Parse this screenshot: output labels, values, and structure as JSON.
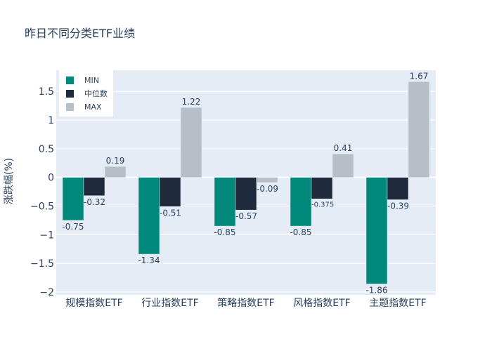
{
  "chart_data": {
    "type": "bar",
    "title": "昨日不同分类ETF业绩",
    "xlabel": "",
    "ylabel": "涨跌幅(%)",
    "categories": [
      "规模指数ETF",
      "行业指数ETF",
      "策略指数ETF",
      "风格指数ETF",
      "主题指数ETF"
    ],
    "series": [
      {
        "name": "MIN",
        "color": "#00897b",
        "values": [
          -0.75,
          -1.34,
          -0.85,
          -0.85,
          -1.86
        ],
        "labels": [
          "-0.75",
          "-1.34",
          "-0.85",
          "-0.85",
          "-1.86"
        ]
      },
      {
        "name": "中位数",
        "color": "#1f2a3c",
        "values": [
          -0.32,
          -0.51,
          -0.57,
          -0.375,
          -0.39
        ],
        "labels": [
          "-0.32",
          "-0.51",
          "-0.57",
          "-0.375",
          "-0.39"
        ]
      },
      {
        "name": "MAX",
        "color": "#b8bec6",
        "values": [
          0.19,
          1.22,
          -0.09,
          0.41,
          1.67
        ],
        "labels": [
          "0.19",
          "1.22",
          "-0.09",
          "0.41",
          "1.67"
        ]
      }
    ],
    "yticks": [
      1.5,
      1,
      0.5,
      0,
      -0.5,
      -1,
      -1.5,
      -2
    ],
    "ytick_labels": [
      "1.5",
      "1",
      "0.5",
      "0",
      "−0.5",
      "−1",
      "−1.5",
      "−2"
    ],
    "ylim": [
      -2.05,
      1.87
    ],
    "grid": true,
    "legend_position": "top-left",
    "plot_bg": "#e5ecf6",
    "text_color": "#2a3f5f"
  }
}
